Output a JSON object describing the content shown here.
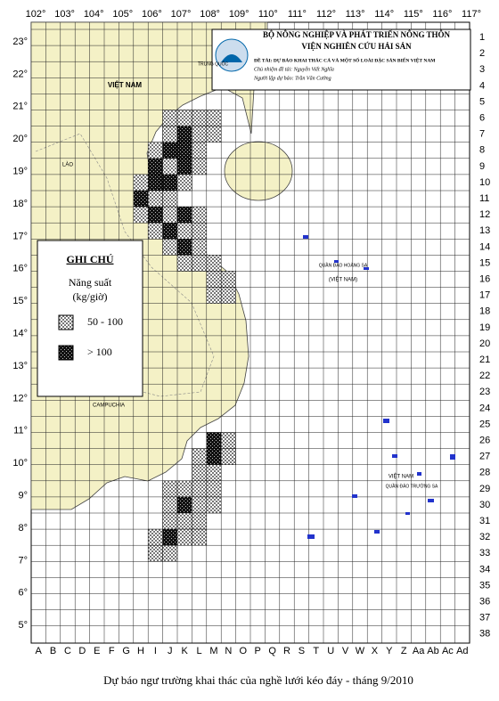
{
  "header": {
    "ministry": "BỘ NÔNG NGHIỆP VÀ PHÁT TRIỂN NÔNG THÔN",
    "institute": "VIỆN NGHIÊN CỨU HẢI SẢN",
    "project": "ĐỀ TÀI: DỰ BÁO KHAI THÁC CÁ VÀ MỘT SỐ LOÀI ĐẶC SẢN BIỂN VIỆT NAM",
    "leader": "Chủ nhiệm đề tài: Nguyễn Viết Nghĩa",
    "forecaster": "Người lập dự báo: Trần Văn Cường"
  },
  "longitude_labels": [
    "102°",
    "103°",
    "104°",
    "105°",
    "106°",
    "107°",
    "108°",
    "109°",
    "110°",
    "111°",
    "112°",
    "113°",
    "114°",
    "115°",
    "116°",
    "117°"
  ],
  "latitude_labels": [
    "23°",
    "22°",
    "21°",
    "20°",
    "19°",
    "18°",
    "17°",
    "16°",
    "15°",
    "14°",
    "13°",
    "12°",
    "11°",
    "10°",
    "9°",
    "8°",
    "7°",
    "6°",
    "5°"
  ],
  "row_labels": [
    1,
    2,
    3,
    4,
    5,
    6,
    7,
    8,
    9,
    10,
    11,
    12,
    13,
    14,
    15,
    16,
    17,
    18,
    19,
    20,
    21,
    22,
    23,
    24,
    25,
    26,
    27,
    28,
    29,
    30,
    31,
    32,
    33,
    34,
    35,
    36,
    37,
    38
  ],
  "column_labels": [
    "A",
    "B",
    "C",
    "D",
    "E",
    "F",
    "G",
    "H",
    "I",
    "J",
    "K",
    "L",
    "M",
    "N",
    "O",
    "P",
    "Q",
    "R",
    "S",
    "T",
    "U",
    "V",
    "W",
    "X",
    "Y",
    "Z",
    "Aa",
    "Ab",
    "Ac",
    "Ad"
  ],
  "legend": {
    "title": "GHI CHÚ",
    "subtitle": "Năng suất",
    "unit": "(kg/giờ)",
    "medium": "50 - 100",
    "high": "> 100"
  },
  "map_labels": {
    "china": "TRUNG QUỐC",
    "vietnam": "VIỆT NAM",
    "laos": "LÀO",
    "cambodia": "CAMPUCHIA",
    "paracel": "QUẦN ĐẢO HOÀNG SA",
    "paracel_country": "(VIỆT NAM)",
    "spratly": "QUẦN ĐẢO TRƯỜNG SA",
    "spratly_country": "VIỆT NAM"
  },
  "caption": "Dự báo ngư trường khai thác của nghề lưới kéo đáy - tháng 9/2010"
}
